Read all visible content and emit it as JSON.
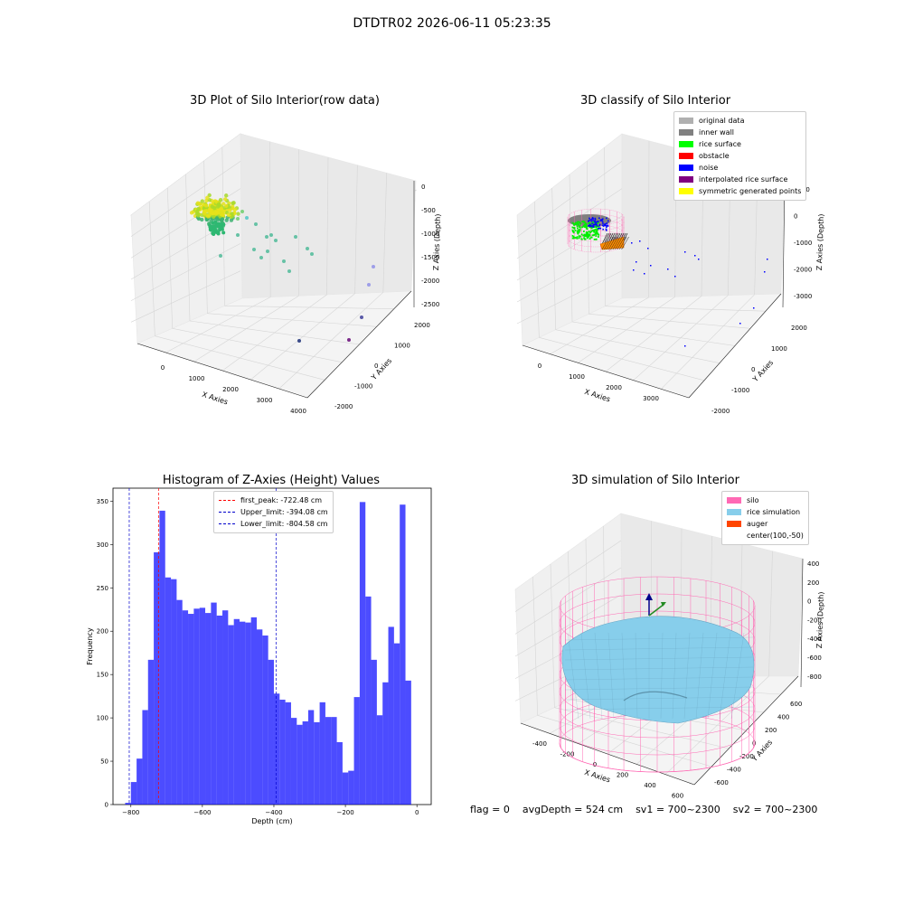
{
  "suptitle": "DTDTR02 2026-06-11 05:23:35",
  "panels": {
    "p1": {
      "title": "3D Plot of Silo Interior(row data)",
      "xlabel": "X Axies",
      "ylabel": "Y Axies",
      "zlabel": "Z Axies (Depth)",
      "xticks": [
        "0",
        "1000",
        "2000",
        "3000",
        "4000"
      ],
      "yticks": [
        "-2000",
        "-1000",
        "0",
        "1000",
        "2000"
      ],
      "zticks": [
        "0",
        "-500",
        "-1000",
        "-1500",
        "-2000",
        "-2500"
      ]
    },
    "p2": {
      "title": "3D classify of Silo Interior",
      "xlabel": "X Axies",
      "ylabel": "Y Axies",
      "zlabel": "Z Axies (Depth)",
      "xticks": [
        "0",
        "1000",
        "2000",
        "3000"
      ],
      "yticks": [
        "-2000",
        "-1000",
        "0",
        "1000",
        "2000"
      ],
      "zticks": [
        "1000",
        "0",
        "-1000",
        "-2000",
        "-3000"
      ],
      "legend": [
        {
          "label": "original data",
          "color": "#b0b0b0"
        },
        {
          "label": "inner wall",
          "color": "#808080"
        },
        {
          "label": "rice surface",
          "color": "#00ff00"
        },
        {
          "label": "obstacle",
          "color": "#ff0000"
        },
        {
          "label": "noise",
          "color": "#0000ff"
        },
        {
          "label": "interpolated rice surface",
          "color": "#800080"
        },
        {
          "label": "symmetric generated points",
          "color": "#ffff00"
        }
      ]
    },
    "p4": {
      "title": "3D simulation of Silo Interior",
      "xlabel": "X Axies",
      "ylabel": "Y Axies",
      "zlabel": "Z Axies (Depth)",
      "xticks": [
        "-400",
        "-200",
        "0",
        "200",
        "400",
        "600"
      ],
      "yticks": [
        "-600",
        "-400",
        "-200",
        "0",
        "200",
        "400",
        "600"
      ],
      "zticks": [
        "400",
        "200",
        "0",
        "-200",
        "-400",
        "-600",
        "-800"
      ],
      "legend": [
        {
          "label": "silo",
          "color": "#ff69b4"
        },
        {
          "label": "rice simulation",
          "color": "#87ceeb"
        },
        {
          "label": "auger",
          "color": "#ff4500"
        },
        {
          "label": "center(100,-50)",
          "color": ""
        }
      ]
    }
  },
  "chart_data": {
    "type": "bar",
    "title": "Histogram of Z-Axies (Height) Values",
    "xlabel": "Depth (cm)",
    "ylabel": "Frequency",
    "xlim": [
      -850,
      40
    ],
    "ylim": [
      0,
      365
    ],
    "xticks": [
      -800,
      -600,
      -400,
      -200,
      0
    ],
    "yticks": [
      0,
      50,
      100,
      150,
      200,
      250,
      300,
      350
    ],
    "bin_width": 16,
    "bin_starts": [
      -816,
      -800,
      -784,
      -768,
      -752,
      -736,
      -720,
      -704,
      -688,
      -672,
      -656,
      -640,
      -624,
      -608,
      -592,
      -576,
      -560,
      -544,
      -528,
      -512,
      -496,
      -480,
      -464,
      -448,
      -432,
      -416,
      -400,
      -384,
      -368,
      -352,
      -336,
      -320,
      -304,
      -288,
      -272,
      -256,
      -240,
      -224,
      -208,
      -192,
      -176,
      -160,
      -144,
      -128,
      -112,
      -96,
      -80,
      -64,
      -48,
      -32,
      -16
    ],
    "values": [
      2,
      26,
      53,
      109,
      167,
      291,
      339,
      262,
      260,
      236,
      224,
      220,
      226,
      227,
      221,
      233,
      218,
      224,
      207,
      214,
      211,
      210,
      216,
      202,
      195,
      167,
      128,
      121,
      118,
      100,
      92,
      96,
      109,
      95,
      118,
      101,
      101,
      72,
      37,
      39,
      124,
      349,
      240,
      167,
      103,
      141,
      205,
      186,
      346,
      143,
      0
    ],
    "series_color": "#0000ff",
    "reference_lines": [
      {
        "label": "first_peak: -722.48 cm",
        "x": -722.48,
        "color": "#ff0000"
      },
      {
        "label": "Upper_limit: -394.08 cm",
        "x": -394.08,
        "color": "#0000cc"
      },
      {
        "label": "Lower_limit: -804.58 cm",
        "x": -804.58,
        "color": "#0000cc"
      }
    ]
  },
  "footer": {
    "flag": "flag = 0",
    "avg": "avgDepth = 524 cm",
    "sv1": "sv1 = 700~2300",
    "sv2": "sv2 = 700~2300"
  }
}
